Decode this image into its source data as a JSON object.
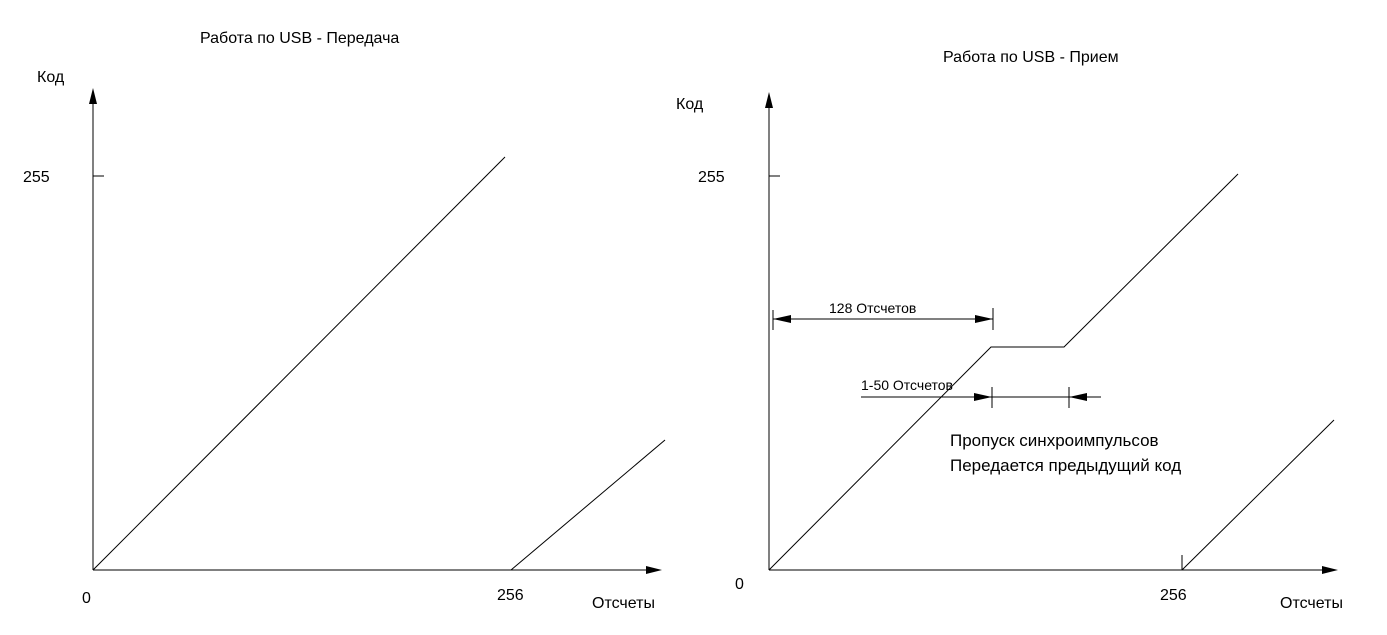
{
  "left": {
    "title": "Работа по USB - Передача",
    "y_axis_label": "Код",
    "x_axis_label": "Отсчеты",
    "y_tick_label": "255",
    "x_tick_label": "256",
    "origin_label": "0"
  },
  "right": {
    "title": "Работа по USB - Прием",
    "y_axis_label": "Код",
    "x_axis_label": "Отсчеты",
    "y_tick_label": "255",
    "x_tick_label": "256",
    "origin_label": "0",
    "annotation_128": "128 Отсчетов",
    "annotation_1_50": "1-50 Отсчетов",
    "note_line1": "Пропуск синхроимпульсов",
    "note_line2": "Передается предыдущий код"
  }
}
